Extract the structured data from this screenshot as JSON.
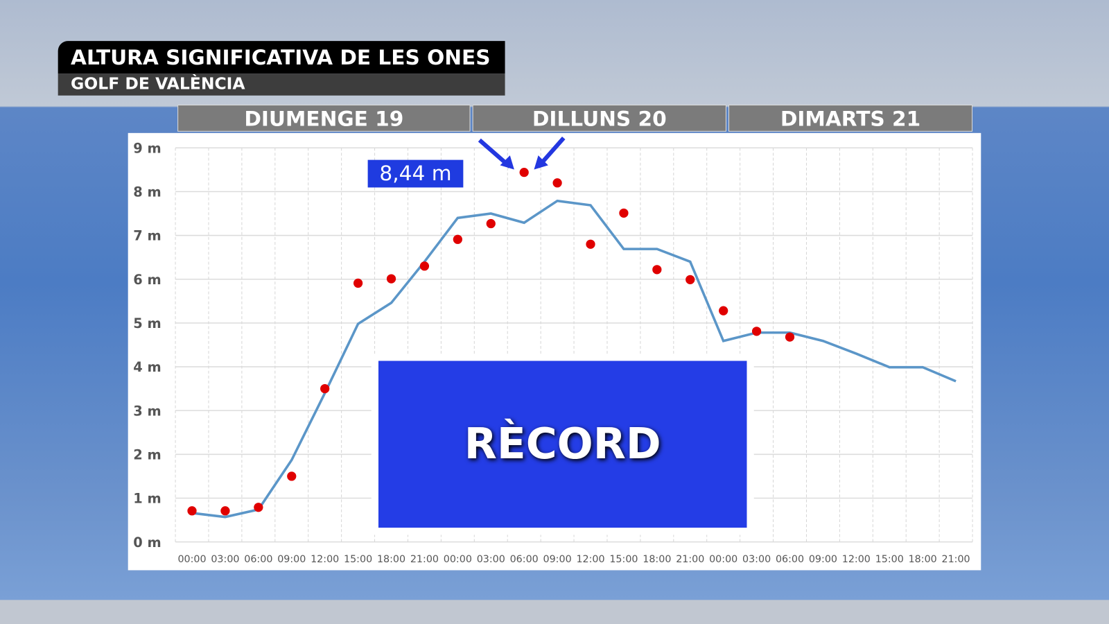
{
  "header": {
    "title": "ALTURA SIGNIFICATIVA DE LES ONES",
    "subtitle": "GOLF DE VALÈNCIA"
  },
  "days": [
    "DIUMENGE 19",
    "DILLUNS 20",
    "DIMARTS 21"
  ],
  "record_label": "RÈCORD",
  "peak_label": "8,44 m",
  "colors": {
    "observed": "#e00000",
    "forecast": "#5b96c8",
    "highlight": "#243de6"
  },
  "chart_data": {
    "type": "line",
    "title": "",
    "xlabel": "",
    "ylabel": "",
    "ylim": [
      0,
      9
    ],
    "yticks": [
      "0 m",
      "1 m",
      "2 m",
      "3 m",
      "4 m",
      "5 m",
      "6 m",
      "7 m",
      "8 m",
      "9 m"
    ],
    "categories": [
      "00:00",
      "03:00",
      "06:00",
      "09:00",
      "12:00",
      "15:00",
      "18:00",
      "21:00",
      "00:00",
      "03:00",
      "06:00",
      "09:00",
      "12:00",
      "15:00",
      "18:00",
      "21:00",
      "00:00",
      "03:00",
      "06:00",
      "09:00",
      "12:00",
      "15:00",
      "18:00",
      "21:00"
    ],
    "grid": true,
    "series": [
      {
        "type": "line",
        "values": [
          0.66,
          0.57,
          0.74,
          1.87,
          3.4,
          4.98,
          5.46,
          6.4,
          7.4,
          7.5,
          7.29,
          7.79,
          7.69,
          6.69,
          6.69,
          6.4,
          4.59,
          4.78,
          4.78,
          4.59,
          4.3,
          3.99,
          3.99,
          3.67
        ]
      },
      {
        "type": "scatter",
        "values": [
          0.71,
          0.71,
          0.79,
          1.5,
          3.5,
          5.91,
          6.01,
          6.3,
          6.91,
          7.27,
          8.44,
          8.2,
          6.8,
          7.51,
          6.22,
          5.99,
          5.28,
          4.81,
          4.68,
          null,
          null,
          null,
          null,
          null
        ]
      }
    ],
    "annotations": [
      "8,44 m"
    ]
  }
}
